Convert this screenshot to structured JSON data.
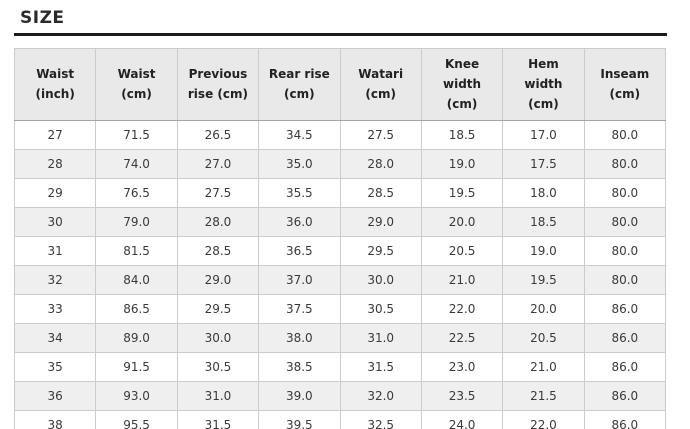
{
  "page": {
    "title": "SIZE"
  },
  "table": {
    "columns": [
      "Waist (inch)",
      "Waist (cm)",
      "Previous rise (cm)",
      "Rear rise (cm)",
      "Watari (cm)",
      "Knee width (cm)",
      "Hem width (cm)",
      "Inseam (cm)"
    ],
    "rows": [
      [
        "27",
        "71.5",
        "26.5",
        "34.5",
        "27.5",
        "18.5",
        "17.0",
        "80.0"
      ],
      [
        "28",
        "74.0",
        "27.0",
        "35.0",
        "28.0",
        "19.0",
        "17.5",
        "80.0"
      ],
      [
        "29",
        "76.5",
        "27.5",
        "35.5",
        "28.5",
        "19.5",
        "18.0",
        "80.0"
      ],
      [
        "30",
        "79.0",
        "28.0",
        "36.0",
        "29.0",
        "20.0",
        "18.5",
        "80.0"
      ],
      [
        "31",
        "81.5",
        "28.5",
        "36.5",
        "29.5",
        "20.5",
        "19.0",
        "80.0"
      ],
      [
        "32",
        "84.0",
        "29.0",
        "37.0",
        "30.0",
        "21.0",
        "19.5",
        "80.0"
      ],
      [
        "33",
        "86.5",
        "29.5",
        "37.5",
        "30.5",
        "22.0",
        "20.0",
        "86.0"
      ],
      [
        "34",
        "89.0",
        "30.0",
        "38.0",
        "31.0",
        "22.5",
        "20.5",
        "86.0"
      ],
      [
        "35",
        "91.5",
        "30.5",
        "38.5",
        "31.5",
        "23.0",
        "21.0",
        "86.0"
      ],
      [
        "36",
        "93.0",
        "31.0",
        "39.0",
        "32.0",
        "23.5",
        "21.5",
        "86.0"
      ],
      [
        "38",
        "95.5",
        "31.5",
        "39.5",
        "32.5",
        "24.0",
        "22.0",
        "86.0"
      ]
    ]
  },
  "colors": {
    "header_bg": "#e9e9e9",
    "row_alt_bg": "#efefef",
    "border": "#cccccc",
    "header_border_bottom": "#a6a6a6",
    "title_rule": "#1c1c1c",
    "text": "#3a3a3a",
    "title_color": "#2b2b2b"
  }
}
